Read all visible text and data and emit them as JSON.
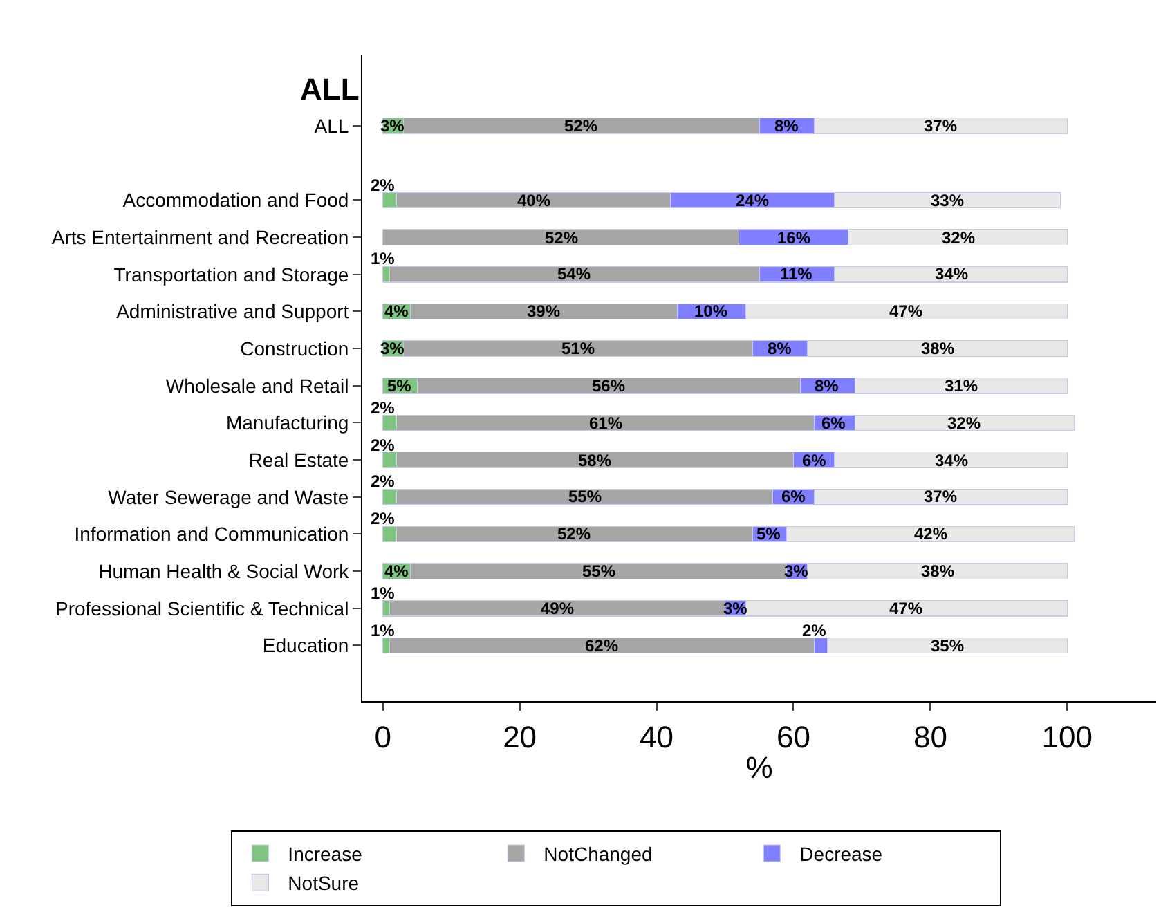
{
  "chart_data": {
    "type": "bar",
    "orientation": "horizontal",
    "stacked": true,
    "categories": [
      "ALL",
      null,
      "Accommodation and Food",
      "Arts Entertainment and Recreation",
      "Transportation and Storage",
      "Administrative and Support",
      "Construction",
      "Wholesale and Retail",
      "Manufacturing",
      "Real Estate",
      "Water Sewerage and Waste",
      "Information and Communication",
      "Human Health & Social Work",
      "Professional Scientific & Technical",
      "Education"
    ],
    "series": [
      {
        "name": "Increase",
        "color": "#7fc47f",
        "values": [
          3,
          null,
          2,
          null,
          1,
          4,
          3,
          5,
          2,
          2,
          2,
          2,
          4,
          1,
          1
        ],
        "value_labels": [
          "3%",
          null,
          "2%",
          null,
          "1%",
          "4%",
          "3%",
          "5%",
          "2%",
          "2%",
          "2%",
          "2%",
          "4%",
          "1%",
          "1%"
        ]
      },
      {
        "name": "NotChanged",
        "color": "#a6a6a6",
        "values": [
          52,
          null,
          40,
          52,
          54,
          39,
          51,
          56,
          61,
          58,
          55,
          52,
          55,
          49,
          62
        ],
        "value_labels": [
          "52%",
          null,
          "40%",
          "52%",
          "54%",
          "39%",
          "51%",
          "56%",
          "61%",
          "58%",
          "55%",
          "52%",
          "55%",
          "49%",
          "62%"
        ]
      },
      {
        "name": "Decrease",
        "color": "#7f7fff",
        "values": [
          8,
          null,
          24,
          16,
          11,
          10,
          8,
          8,
          6,
          6,
          6,
          5,
          3,
          3,
          2
        ],
        "value_labels": [
          "8%",
          null,
          "24%",
          "16%",
          "11%",
          "10%",
          "8%",
          "8%",
          "6%",
          "6%",
          "6%",
          "5%",
          "3%",
          "3%",
          "2%"
        ]
      },
      {
        "name": "NotSure",
        "color": "#e8e8e8",
        "values": [
          37,
          null,
          33,
          32,
          34,
          47,
          38,
          31,
          32,
          34,
          37,
          42,
          38,
          47,
          35
        ],
        "value_labels": [
          "37%",
          null,
          "33%",
          "32%",
          "34%",
          "47%",
          "38%",
          "31%",
          "32%",
          "34%",
          "37%",
          "42%",
          "38%",
          "47%",
          "35%"
        ]
      }
    ],
    "xlabel": "%",
    "xlim": [
      -3,
      113
    ],
    "xticks": [
      0,
      20,
      40,
      60,
      80,
      100
    ],
    "annotations": [
      "ALL"
    ],
    "grid": false,
    "legend": "bottom"
  }
}
